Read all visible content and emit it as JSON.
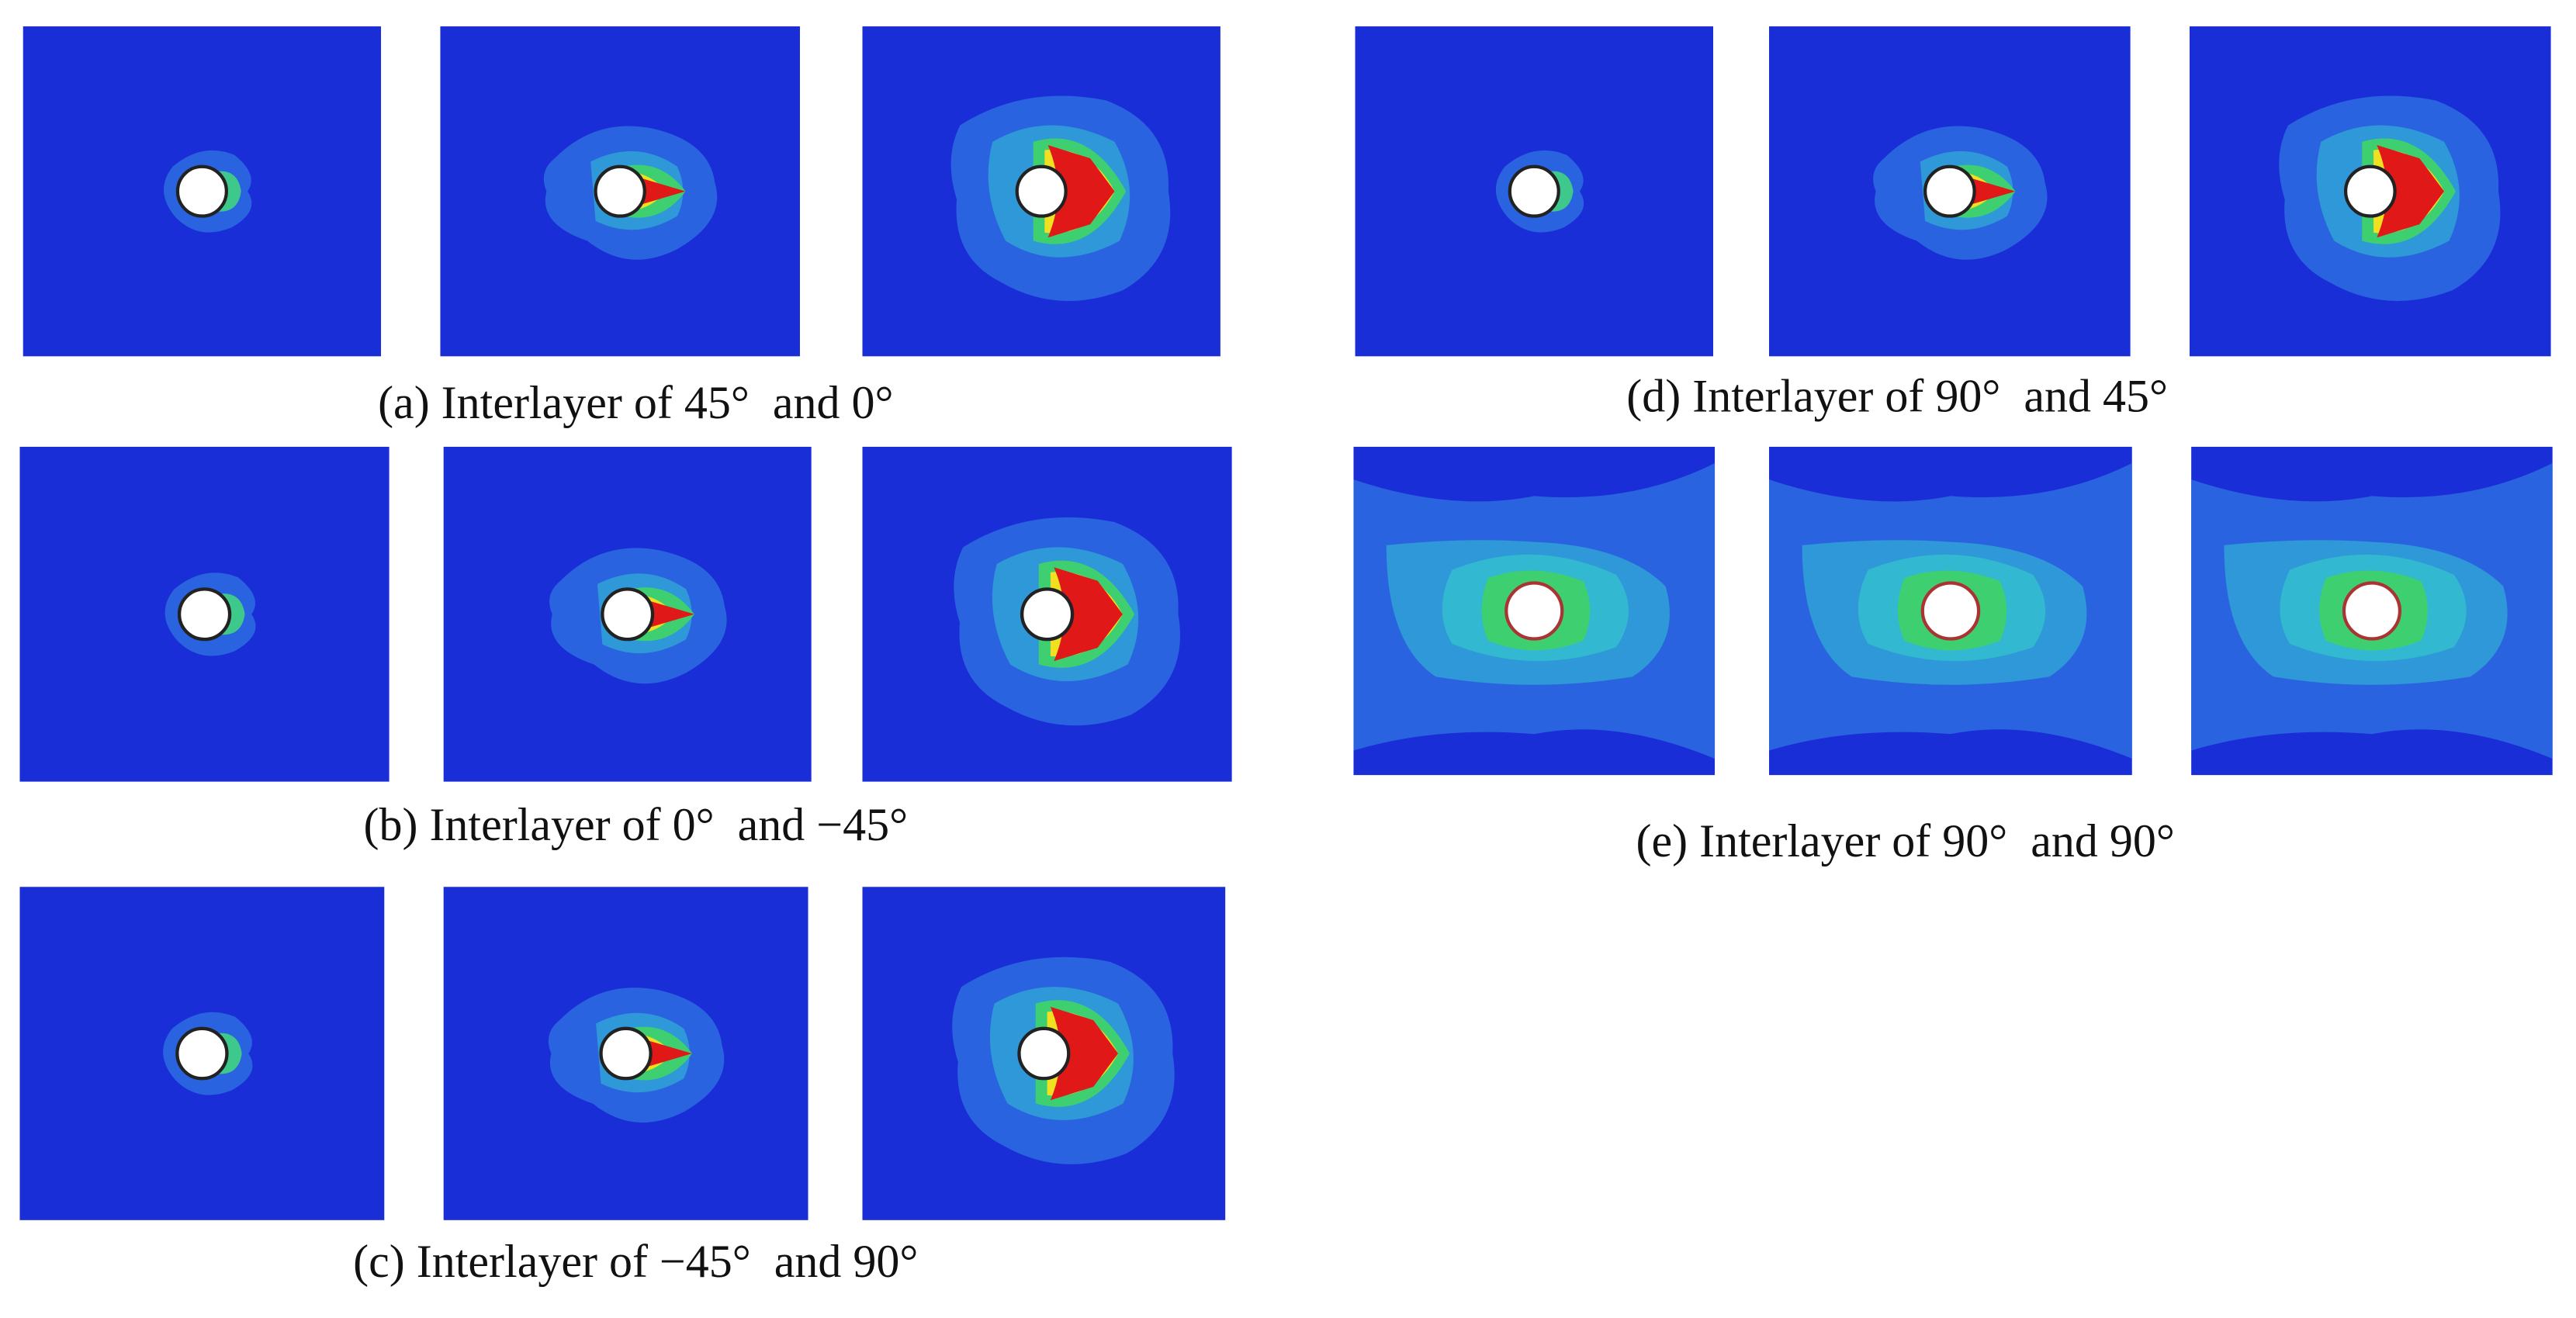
{
  "panels": [
    {
      "caption": "(a) Interlayer of 45°  and 0°"
    },
    {
      "caption": "(b) Interlayer of 0°  and −45°"
    },
    {
      "caption": "(c) Interlayer of −45°  and 90°"
    },
    {
      "caption": "(d) Interlayer of 90°  and 45°"
    },
    {
      "caption": "(e) Interlayer of 90°  and 90°"
    }
  ]
}
